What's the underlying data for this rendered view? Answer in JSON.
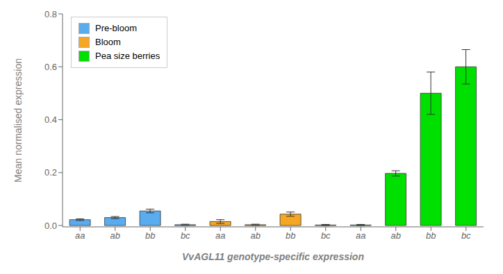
{
  "chart_data": {
    "type": "bar",
    "xlabel": "VvAGL11 genotype-specific expression",
    "ylabel": "Mean normalised expression",
    "categories": [
      "aa",
      "ab",
      "bb",
      "bc",
      "aa",
      "ab",
      "bb",
      "bc",
      "aa",
      "ab",
      "bb",
      "bc"
    ],
    "series": [
      {
        "name": "Pre-bloom",
        "color": "#5aacef",
        "values": [
          0.022,
          0.03,
          0.055,
          0.003,
          null,
          null,
          null,
          null,
          null,
          null,
          null,
          null
        ],
        "errors": [
          0.003,
          0.004,
          0.007,
          0.002,
          null,
          null,
          null,
          null,
          null,
          null,
          null,
          null
        ]
      },
      {
        "name": "Bloom",
        "color": "#f5a623",
        "values": [
          null,
          null,
          null,
          null,
          0.015,
          0.003,
          0.043,
          0.002,
          null,
          null,
          null,
          null
        ],
        "errors": [
          null,
          null,
          null,
          null,
          0.007,
          0.002,
          0.008,
          0.002,
          null,
          null,
          null,
          null
        ]
      },
      {
        "name": "Pea size berries",
        "color": "#00e000",
        "values": [
          null,
          null,
          null,
          null,
          null,
          null,
          null,
          null,
          0.002,
          0.197,
          0.5,
          0.6
        ],
        "errors": [
          null,
          null,
          null,
          null,
          null,
          null,
          null,
          null,
          0.002,
          0.01,
          0.08,
          0.065
        ]
      }
    ],
    "ylim": [
      -0.005,
      0.8
    ],
    "yticks": [
      {
        "value": 0.0,
        "label": "0.0"
      },
      0.2,
      0.4,
      0.6,
      0.8
    ],
    "grid": false,
    "legend": "upper left"
  }
}
